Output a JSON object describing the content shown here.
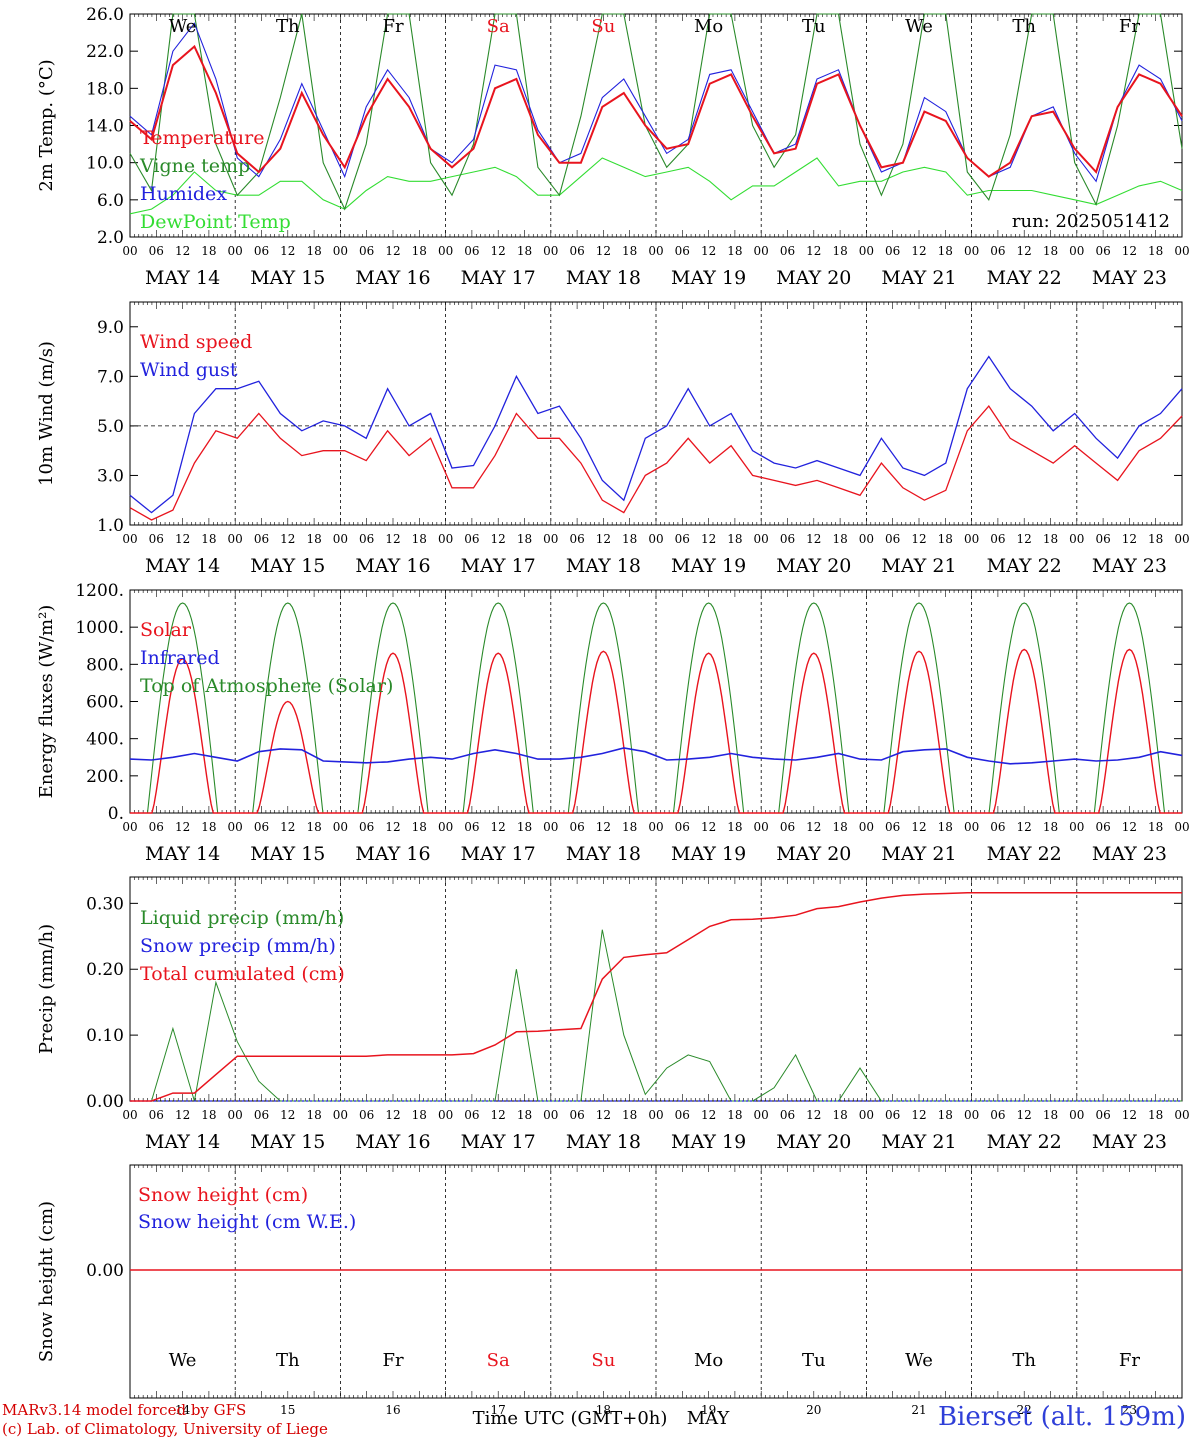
{
  "time_axis": {
    "hours": [
      "00",
      "06",
      "12",
      "18"
    ],
    "dates": [
      "MAY 14",
      "MAY 15",
      "MAY 16",
      "MAY 17",
      "MAY 18",
      "MAY 19",
      "MAY 20",
      "MAY 21",
      "MAY 22",
      "MAY 23"
    ],
    "weekdays": [
      "We",
      "Th",
      "Fr",
      "Sa",
      "Su",
      "Mo",
      "Tu",
      "We",
      "Th",
      "Fr"
    ],
    "weekend_indices": [
      3,
      4
    ],
    "day_numbers": [
      "14",
      "15",
      "16",
      "17",
      "18",
      "19",
      "20",
      "21",
      "22",
      "23"
    ],
    "bottom_label": "Time UTC (GMT+0h)",
    "month": "MAY"
  },
  "footer": {
    "model_line": "MARv3.14 model forced by GFS",
    "lab_line": "(c) Lab. of Climatology, University of Liege",
    "station": "Bierset (alt. 159m)"
  },
  "colors": {
    "red": "#e8141e",
    "blue": "#2222dd",
    "dark_green": "#2a8a2a",
    "light_green": "#33dd33",
    "black": "#000000"
  },
  "chart_data": [
    {
      "type": "line",
      "ylabel": "2m Temp. (°C)",
      "ylim": [
        2.0,
        26.0
      ],
      "yticks": [
        "2.0",
        "6.0",
        "10.0",
        "14.0",
        "18.0",
        "22.0",
        "26.0"
      ],
      "run_label": "run: 2025051412",
      "x_hours_step": 6,
      "series": [
        {
          "name": "Temperature",
          "color": "red",
          "values": [
            14.5,
            12.5,
            20.5,
            22.5,
            17.5,
            11.0,
            9.0,
            11.5,
            17.5,
            13.0,
            9.5,
            15.0,
            19.0,
            16.0,
            11.5,
            9.5,
            11.5,
            18.0,
            19.0,
            13.0,
            10.0,
            10.0,
            16.0,
            17.5,
            14.0,
            11.5,
            12.0,
            18.5,
            19.5,
            15.0,
            11.0,
            11.5,
            18.5,
            19.5,
            14.0,
            9.5,
            10.0,
            15.5,
            14.5,
            10.5,
            8.5,
            10.0,
            15.0,
            15.5,
            11.5,
            9.0,
            16.0,
            19.5,
            18.5,
            15.0
          ]
        },
        {
          "name": "Vigne temp",
          "color": "dark_green",
          "values": [
            11.0,
            7.0,
            26.0,
            26.0,
            12.0,
            6.5,
            9.0,
            17.0,
            26.0,
            10.0,
            5.0,
            12.0,
            26.0,
            26.0,
            10.0,
            6.5,
            12.0,
            26.0,
            26.0,
            9.5,
            6.5,
            15.0,
            26.0,
            26.0,
            14.0,
            9.5,
            12.0,
            26.0,
            26.0,
            14.0,
            9.5,
            13.0,
            26.0,
            26.0,
            12.0,
            6.5,
            12.0,
            26.0,
            26.0,
            9.0,
            6.0,
            13.0,
            26.0,
            26.0,
            10.0,
            5.5,
            14.0,
            26.0,
            26.0,
            11.5
          ]
        },
        {
          "name": "Humidex",
          "color": "blue",
          "values": [
            15.0,
            13.0,
            22.0,
            25.0,
            19.0,
            10.5,
            8.5,
            12.5,
            18.5,
            13.5,
            8.5,
            16.0,
            20.0,
            17.0,
            11.5,
            10.0,
            12.5,
            20.5,
            20.0,
            13.5,
            10.0,
            11.0,
            17.0,
            19.0,
            15.0,
            11.0,
            12.5,
            19.5,
            20.0,
            15.5,
            11.0,
            12.0,
            19.0,
            20.0,
            14.0,
            9.0,
            10.0,
            17.0,
            15.5,
            10.5,
            8.5,
            9.5,
            15.0,
            16.0,
            11.0,
            8.0,
            16.0,
            20.5,
            19.0,
            14.5
          ]
        },
        {
          "name": "DewPoint Temp",
          "color": "light_green",
          "values": [
            4.5,
            5.0,
            6.5,
            9.0,
            7.0,
            6.5,
            6.5,
            8.0,
            8.0,
            6.0,
            5.0,
            7.0,
            8.5,
            8.0,
            8.0,
            8.5,
            9.0,
            9.5,
            8.5,
            6.5,
            6.5,
            8.5,
            10.5,
            9.5,
            8.5,
            9.0,
            9.5,
            8.0,
            6.0,
            7.5,
            7.5,
            9.0,
            10.5,
            7.5,
            8.0,
            8.0,
            9.0,
            9.5,
            9.0,
            6.5,
            7.0,
            7.0,
            7.0,
            6.5,
            6.0,
            5.5,
            6.5,
            7.5,
            8.0,
            7.0
          ]
        }
      ]
    },
    {
      "type": "line",
      "ylabel": "10m Wind (m/s)",
      "ylim": [
        1.0,
        10.0
      ],
      "yticks": [
        "1.0",
        "3.0",
        "5.0",
        "7.0",
        "9.0"
      ],
      "reference_line": 5.0,
      "x_hours_step": 6,
      "series": [
        {
          "name": "Wind speed",
          "color": "red",
          "values": [
            1.7,
            1.2,
            1.6,
            3.5,
            4.8,
            4.5,
            5.5,
            4.5,
            3.8,
            4.0,
            4.0,
            3.6,
            4.8,
            3.8,
            4.5,
            2.5,
            2.5,
            3.8,
            5.5,
            4.5,
            4.5,
            3.5,
            2.0,
            1.5,
            3.0,
            3.5,
            4.5,
            3.5,
            4.2,
            3.0,
            2.8,
            2.6,
            2.8,
            2.5,
            2.2,
            3.5,
            2.5,
            2.0,
            2.4,
            4.8,
            5.8,
            4.5,
            4.0,
            3.5,
            4.2,
            3.5,
            2.8,
            4.0,
            4.5,
            5.4
          ]
        },
        {
          "name": "Wind gust",
          "color": "blue",
          "values": [
            2.2,
            1.5,
            2.2,
            5.5,
            6.5,
            6.5,
            6.8,
            5.5,
            4.8,
            5.2,
            5.0,
            4.5,
            6.5,
            5.0,
            5.5,
            3.3,
            3.4,
            5.0,
            7.0,
            5.5,
            5.8,
            4.5,
            2.8,
            2.0,
            4.5,
            5.0,
            6.5,
            5.0,
            5.5,
            4.0,
            3.5,
            3.3,
            3.6,
            3.3,
            3.0,
            4.5,
            3.3,
            3.0,
            3.5,
            6.5,
            7.8,
            6.5,
            5.8,
            4.8,
            5.5,
            4.5,
            3.7,
            5.0,
            5.5,
            6.5
          ]
        }
      ]
    },
    {
      "type": "line",
      "ylabel": "Energy fluxes (W/m²)",
      "ylim": [
        0,
        1200
      ],
      "yticks": [
        "0.",
        "200.",
        "400.",
        "600.",
        "800.",
        "1000.",
        "1200."
      ],
      "x_hours_step": 6,
      "series": [
        {
          "name": "Solar",
          "color": "red",
          "peaks": [
            830,
            600,
            860,
            860,
            870,
            860,
            860,
            870,
            880,
            880
          ]
        },
        {
          "name": "Infrared",
          "color": "blue",
          "values": [
            290,
            285,
            300,
            320,
            300,
            280,
            330,
            345,
            340,
            280,
            275,
            270,
            275,
            290,
            300,
            290,
            320,
            340,
            320,
            290,
            290,
            300,
            320,
            350,
            330,
            285,
            290,
            300,
            320,
            300,
            290,
            285,
            300,
            320,
            290,
            285,
            330,
            340,
            345,
            300,
            280,
            265,
            270,
            280,
            290,
            280,
            285,
            300,
            330,
            310
          ]
        },
        {
          "name": "Top of Atmosphere (Solar)",
          "color": "dark_green",
          "peak": 1130
        }
      ]
    },
    {
      "type": "line",
      "ylabel": "Precip (mm/h)",
      "ylim": [
        0.0,
        0.34
      ],
      "yticks": [
        "0.00",
        "0.10",
        "0.20",
        "0.30"
      ],
      "x_hours_step": 6,
      "series": [
        {
          "name": "Liquid precip (mm/h)",
          "color": "dark_green",
          "values": [
            0,
            0,
            0.11,
            0,
            0.18,
            0.09,
            0.03,
            0,
            0,
            0,
            0,
            0,
            0,
            0,
            0,
            0,
            0,
            0,
            0.2,
            0,
            0,
            0,
            0.26,
            0.1,
            0.01,
            0.05,
            0.07,
            0.06,
            0,
            0,
            0.02,
            0.07,
            0,
            0,
            0.05,
            0,
            0,
            0,
            0,
            0,
            0,
            0,
            0,
            0,
            0,
            0,
            0,
            0,
            0,
            0
          ]
        },
        {
          "name": "Snow precip (mm/h)",
          "color": "blue",
          "values": [
            0
          ]
        },
        {
          "name": "Total cumulated (cm)",
          "color": "red",
          "values": [
            0,
            0,
            0.012,
            0.012,
            0.04,
            0.068,
            0.068,
            0.068,
            0.068,
            0.068,
            0.068,
            0.068,
            0.07,
            0.07,
            0.07,
            0.07,
            0.072,
            0.085,
            0.105,
            0.106,
            0.108,
            0.11,
            0.185,
            0.218,
            0.222,
            0.225,
            0.245,
            0.265,
            0.275,
            0.276,
            0.278,
            0.282,
            0.292,
            0.295,
            0.302,
            0.308,
            0.312,
            0.314,
            0.315,
            0.316,
            0.316,
            0.316,
            0.316,
            0.316,
            0.316,
            0.316,
            0.316,
            0.316,
            0.316,
            0.316
          ]
        }
      ]
    },
    {
      "type": "line",
      "ylabel": "Snow height (cm)",
      "yticks": [
        "0.00"
      ],
      "series": [
        {
          "name": "Snow height (cm)",
          "color": "red",
          "values": [
            0
          ]
        },
        {
          "name": "Snow height (cm W.E.)",
          "color": "blue",
          "values": [
            0
          ]
        }
      ]
    }
  ]
}
